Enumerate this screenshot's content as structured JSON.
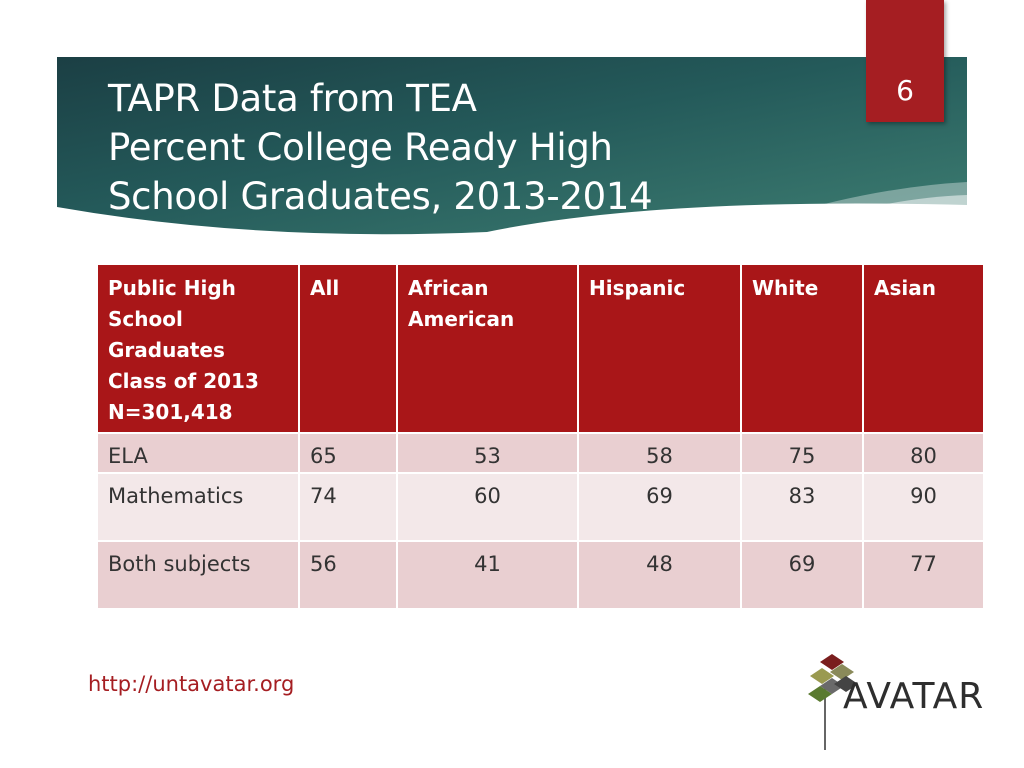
{
  "slide": {
    "number": "6",
    "title_lines": [
      "TAPR Data from TEA",
      "Percent College Ready High",
      "School Graduates, 2013-2014"
    ],
    "footer_url": "http://untavatar.org",
    "logo_text": "AVATAR"
  },
  "table": {
    "headers": [
      [
        "Public High",
        "School",
        "Graduates",
        "Class of 2013",
        "N=301,418"
      ],
      [
        "All"
      ],
      [
        "African",
        "American"
      ],
      [
        "Hispanic"
      ],
      [
        "White"
      ],
      [
        "Asian"
      ]
    ],
    "rows": [
      {
        "label": "ELA",
        "values": [
          "65",
          "53",
          "58",
          "75",
          "80"
        ]
      },
      {
        "label": "Mathematics",
        "values": [
          "74",
          "60",
          "69",
          "83",
          "90"
        ]
      },
      {
        "label": "Both subjects",
        "values": [
          "56",
          "41",
          "48",
          "69",
          "77"
        ]
      }
    ]
  },
  "colors": {
    "banner_dark": "#1f4a4e",
    "banner_light": "#3f7d72",
    "accent_red": "#a51e22",
    "header_red": "#a91618",
    "row_odd": "#e9cfd1",
    "row_even": "#f3e8e9"
  }
}
